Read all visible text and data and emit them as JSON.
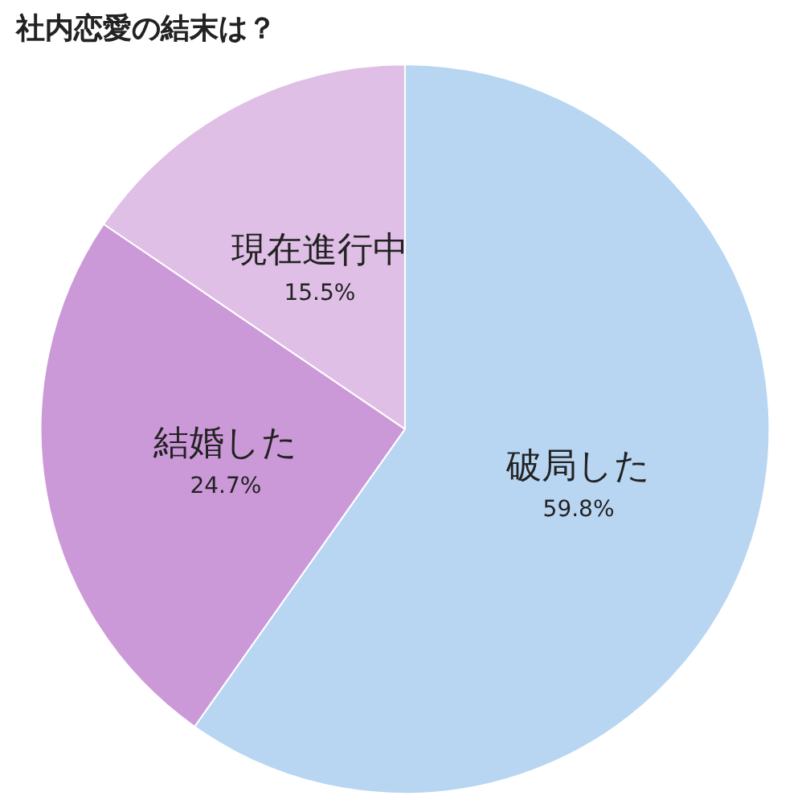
{
  "chart_data": {
    "type": "pie",
    "title": "社内恋愛の結末は？",
    "categories": [
      "破局した",
      "結婚した",
      "現在進行中"
    ],
    "values": [
      59.8,
      24.7,
      15.5
    ],
    "colors": [
      "#b8d6f2",
      "#cc99d8",
      "#dfbfe6"
    ],
    "value_labels": [
      "59.8%",
      "24.7%",
      "15.5%"
    ],
    "legend": false
  }
}
